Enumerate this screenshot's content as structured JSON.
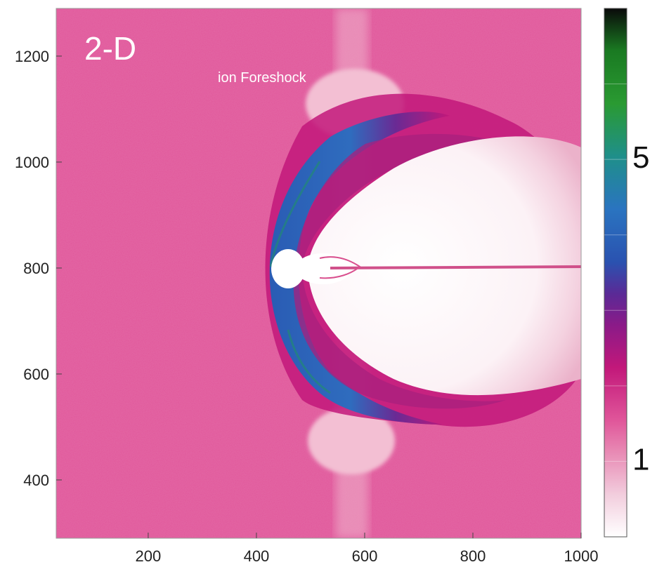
{
  "chart_data": {
    "type": "heatmap",
    "title": "",
    "panel_label": "2-D",
    "annotation": "ion Foreshock",
    "xlabel": "",
    "ylabel": "",
    "xlim": [
      30,
      1000
    ],
    "ylim": [
      290,
      1290
    ],
    "x_ticks": [
      200,
      400,
      600,
      800,
      1000
    ],
    "y_ticks": [
      400,
      600,
      800,
      1000,
      1200
    ],
    "background_value": 1.6,
    "features": {
      "bow_shock_nose": [
        370,
        800
      ],
      "obstacle_center": [
        460,
        800
      ],
      "tail_extends_to_x": 1000
    },
    "colorbar": {
      "tick_labels": [
        "1",
        "5"
      ],
      "tick_values": [
        1,
        5
      ],
      "range": [
        0,
        7
      ],
      "colors": {
        "min": "#ffffff",
        "pink": "#e0569a",
        "magenta": "#c2187a",
        "purple": "#6a2590",
        "blue": "#2a5fb8",
        "teal": "#1f8f8a",
        "green": "#2a9a32",
        "max": "#0a0a0a"
      }
    }
  }
}
